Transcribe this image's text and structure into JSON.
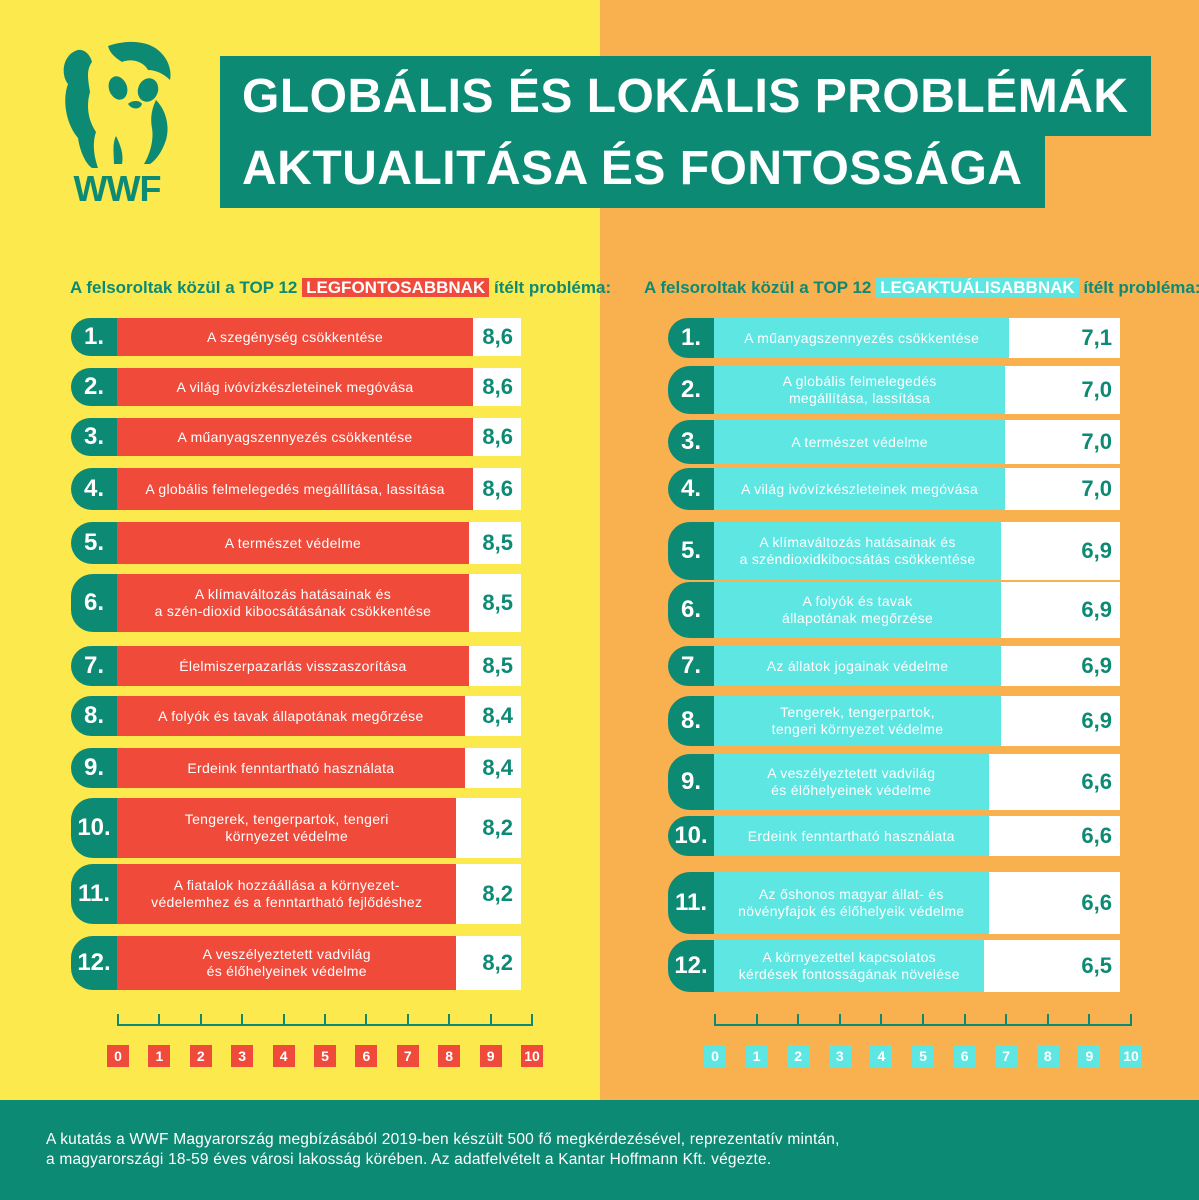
{
  "colors": {
    "yellow": "#fbe94d",
    "orange": "#f9b14f",
    "teal": "#0d8a74",
    "red": "#ef4a3a",
    "cyan": "#5ee6e3"
  },
  "logo": {
    "icon": "panda-logo-icon",
    "text": "WWF"
  },
  "title": {
    "line1": "GLOBÁLIS ÉS LOKÁLIS PROBLÉMÁK",
    "line2": "AKTUALITÁSA ÉS FONTOSSÁGA"
  },
  "left_header": {
    "before": "A felsoroltak közül a TOP 12",
    "highlight": "LEGFONTOSABBNAK",
    "after": "ítélt probléma:"
  },
  "right_header": {
    "before": "A felsoroltak közül a TOP 12",
    "highlight": "LEGAKTUÁLISABBNAK",
    "after": "ítélt probléma:"
  },
  "footer": {
    "line1": "A kutatás a WWF Magyarország megbízásából 2019-ben készült 500 fő megkérdezésével, reprezentatív mintán,",
    "line2": "a magyarországi 18-59 éves városi lakosság körében. Az adatfelvételt a Kantar Hoffmann Kft. végezte."
  },
  "chart_data": [
    {
      "type": "bar",
      "title": "A felsoroltak közül a TOP 12 LEGFONTOSABBNAK ítélt probléma:",
      "xlim": [
        0,
        10
      ],
      "ticks": [
        "0",
        "1",
        "2",
        "3",
        "4",
        "5",
        "6",
        "7",
        "8",
        "9",
        "10"
      ],
      "ranks": [
        "1.",
        "2.",
        "3.",
        "4.",
        "5.",
        "6.",
        "7.",
        "8.",
        "9.",
        "10.",
        "11.",
        "12."
      ],
      "categories": [
        "A szegénység csökkentése",
        "A világ ivóvízkészleteinek megóvása",
        "A műanyagszennyezés csökkentése",
        "A globális felmelegedés megállítása, lassítása",
        "A természet védelme",
        "A klímaváltozás hatásainak és a szén-dioxid kibocsátásának csökkentése",
        "Élelmiszerpazarlás visszaszorítása",
        "A folyók és tavak állapotának megőrzése",
        "Erdeink fenntartható használata",
        "Tengerek, tengerpartok, tengeri környezet védelme",
        "A fiatalok hozzáállása a környezet-védelemhez és a fenntartható fejlődéshez",
        "A veszélyeztetett vadvilág és élőhelyeinek védelme"
      ],
      "labels": [
        "A szegénység csökkentése",
        "A világ ivóvízkészleteinek megóvása",
        "A műanyagszennyezés csökkentése",
        "A globális felmelegedés megállítása, lassítása",
        "A természet védelme",
        "A klímaváltozás hatásainak és\na szén-dioxid kibocsátásának csökkentése",
        "Élelmiszerpazarlás visszaszorítása",
        "A folyók és tavak állapotának megőrzése",
        "Erdeink fenntartható használata",
        "Tengerek, tengerpartok, tengeri\nkörnyezet védelme",
        "A fiatalok hozzáállása a környezet-\nvédelemhez és a fenntartható fejlődéshez",
        "A veszélyeztetett vadvilág\nés élőhelyeinek védelme"
      ],
      "values": [
        8.6,
        8.6,
        8.6,
        8.6,
        8.5,
        8.5,
        8.5,
        8.4,
        8.4,
        8.2,
        8.2,
        8.2
      ],
      "value_labels": [
        "8,6",
        "8,6",
        "8,6",
        "8,6",
        "8,5",
        "8,5",
        "8,5",
        "8,4",
        "8,4",
        "8,2",
        "8,2",
        "8,2"
      ]
    },
    {
      "type": "bar",
      "title": "A felsoroltak közül a TOP 12 LEGAKTUÁLISABBNAK ítélt probléma:",
      "xlim": [
        0,
        10
      ],
      "ticks": [
        "0",
        "1",
        "2",
        "3",
        "4",
        "5",
        "6",
        "7",
        "8",
        "9",
        "10"
      ],
      "ranks": [
        "1.",
        "2.",
        "3.",
        "4.",
        "5.",
        "6.",
        "7.",
        "8.",
        "9.",
        "10.",
        "11.",
        "12."
      ],
      "categories": [
        "A műanyagszennyezés csökkentése",
        "A globális felmelegedés megállítása, lassítása",
        "A természet védelme",
        "A világ ivóvízkészleteinek megóvása",
        "A klímaváltozás hatásainak és a széndioxidkibocsátás csökkentése",
        "A folyók és tavak állapotának megőrzése",
        "Az állatok jogainak védelme",
        "Tengerek, tengerpartok, tengeri környezet védelme",
        "A veszélyeztetett vadvilág és élőhelyeinek védelme",
        "Erdeink fenntartható használata",
        "Az őshonos magyar állat- és növényfajok és élőhelyeik védelme",
        "A környezettel kapcsolatos kérdések fontosságának növelése"
      ],
      "labels": [
        "A műanyagszennyezés csökkentése",
        "A globális felmelegedés\nmegállítása, lassítása",
        "A természet védelme",
        "A világ ivóvízkészleteinek megóvása",
        "A klímaváltozás hatásainak és\na széndioxidkibocsátás csökkentése",
        "A folyók és tavak\nállapotának megőrzése",
        "Az állatok jogainak védelme",
        "Tengerek, tengerpartok,\ntengeri környezet védelme",
        "A veszélyeztetett vadvilág\nés élőhelyeinek védelme",
        "Erdeink fenntartható használata",
        "Az őshonos magyar állat- és\nnövényfajok és élőhelyeik védelme",
        "A környezettel kapcsolatos\nkérdések fontosságának növelése"
      ],
      "values": [
        7.1,
        7.0,
        7.0,
        7.0,
        6.9,
        6.9,
        6.9,
        6.9,
        6.6,
        6.6,
        6.6,
        6.5
      ],
      "value_labels": [
        "7,1",
        "7,0",
        "7,0",
        "7,0",
        "6,9",
        "6,9",
        "6,9",
        "6,9",
        "6,6",
        "6,6",
        "6,6",
        "6,5"
      ]
    }
  ]
}
